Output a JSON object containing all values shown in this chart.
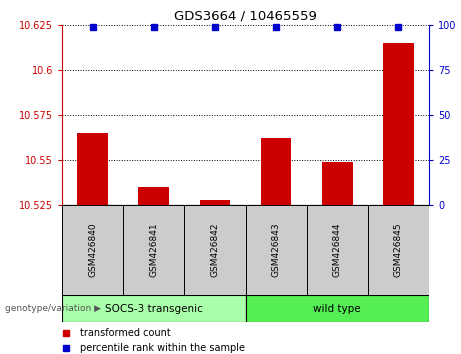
{
  "title": "GDS3664 / 10465559",
  "categories": [
    "GSM426840",
    "GSM426841",
    "GSM426842",
    "GSM426843",
    "GSM426844",
    "GSM426845"
  ],
  "bar_values": [
    10.565,
    10.535,
    10.528,
    10.562,
    10.549,
    10.615
  ],
  "percentile_values": [
    99,
    99,
    99,
    99,
    99,
    99
  ],
  "bar_color": "#cc0000",
  "dot_color": "#0000cc",
  "ylim_left": [
    10.525,
    10.625
  ],
  "ylim_right": [
    0,
    100
  ],
  "yticks_left": [
    10.525,
    10.55,
    10.575,
    10.6,
    10.625
  ],
  "yticks_right": [
    0,
    25,
    50,
    75,
    100
  ],
  "ytick_labels_left": [
    "10.525",
    "10.55",
    "10.575",
    "10.6",
    "10.625"
  ],
  "ytick_labels_right": [
    "0",
    "25",
    "50",
    "75",
    "100"
  ],
  "group1_label": "SOCS-3 transgenic",
  "group2_label": "wild type",
  "group_label_prefix": "genotype/variation",
  "legend_red_label": "transformed count",
  "legend_blue_label": "percentile rank within the sample",
  "bar_width": 0.5,
  "group1_bg": "#aaffaa",
  "group2_bg": "#55ee55",
  "tick_label_area_bg": "#cccccc",
  "grid_color": "#000000"
}
